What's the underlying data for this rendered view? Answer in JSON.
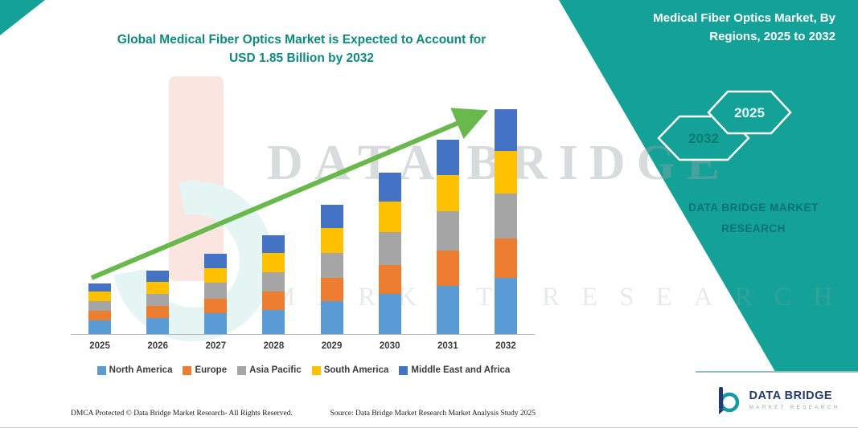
{
  "header": {
    "title_line1": "Global Medical Fiber Optics Market is Expected to Account for",
    "title_line2": "USD 1.85 Billion by 2032"
  },
  "side_panel": {
    "heading": "Medical Fiber Optics Market, By Regions, 2025 to 2032",
    "hex_left": "2032",
    "hex_right": "2025",
    "brand_line1": "DATA BRIDGE MARKET",
    "brand_line2": "RESEARCH"
  },
  "watermark": {
    "line1": "DATA BRIDGE",
    "line2": "MARKET RESEARCH"
  },
  "chart_data": {
    "type": "bar",
    "stacked": true,
    "title": "Global Medical Fiber Optics Market is Expected to Account for USD 1.85 Billion by 2032",
    "unit": "USD Billion",
    "categories": [
      "2025",
      "2026",
      "2027",
      "2028",
      "2029",
      "2030",
      "2031",
      "2032"
    ],
    "series": [
      {
        "name": "North America",
        "color": "#5B9BD5",
        "values": [
          0.11,
          0.13,
          0.17,
          0.2,
          0.27,
          0.33,
          0.4,
          0.46
        ]
      },
      {
        "name": "Europe",
        "color": "#ED7D31",
        "values": [
          0.08,
          0.1,
          0.12,
          0.15,
          0.19,
          0.24,
          0.29,
          0.33
        ]
      },
      {
        "name": "Asia Pacific",
        "color": "#A5A5A5",
        "values": [
          0.08,
          0.1,
          0.13,
          0.16,
          0.21,
          0.27,
          0.32,
          0.37
        ]
      },
      {
        "name": "South America",
        "color": "#FFC000",
        "values": [
          0.08,
          0.1,
          0.12,
          0.16,
          0.2,
          0.25,
          0.3,
          0.35
        ]
      },
      {
        "name": "Middle East and Africa",
        "color": "#4472C4",
        "values": [
          0.07,
          0.09,
          0.12,
          0.14,
          0.19,
          0.24,
          0.29,
          0.34
        ]
      }
    ],
    "total_2032": 1.85,
    "ylim": [
      0,
      1.85
    ],
    "legend_position": "bottom",
    "trend_arrow": true,
    "arrow_color": "#69B84C",
    "grid": false
  },
  "footer": {
    "dmca": "DMCA Protected © Data Bridge Market Research-  All Rights Reserved.",
    "source": "Source: Data Bridge Market Research  Market Analysis Study 2025"
  },
  "logo": {
    "title": "DATA BRIDGE",
    "subtitle": "MARKET RESEARCH"
  },
  "colors": {
    "teal": "#14A298",
    "title_teal": "#0D8A80",
    "brand_dark_teal": "#0A7176",
    "navy": "#223A70"
  }
}
